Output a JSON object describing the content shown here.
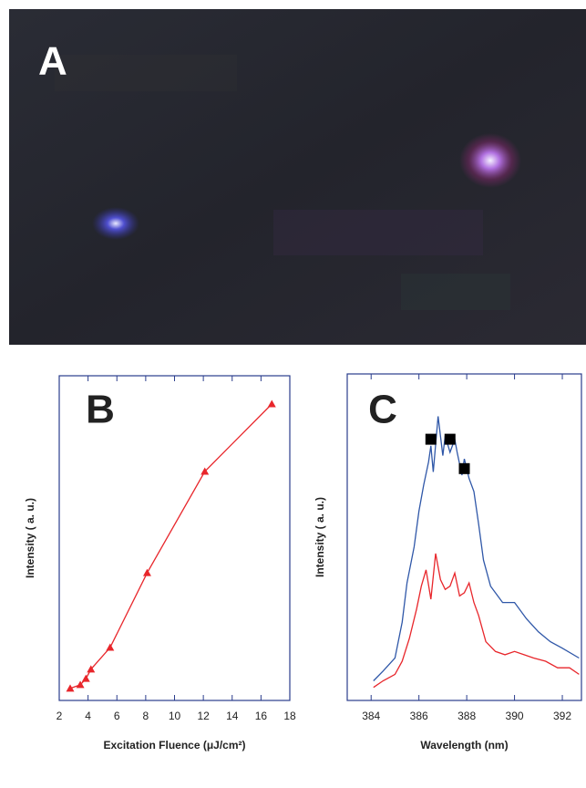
{
  "panel_a": {
    "label": "A"
  },
  "chart_data": [
    {
      "type": "line",
      "label": "B",
      "x_label": "Excitation Fluence  (μJ/cm²)",
      "y_label": "Intensity ( a. u.)",
      "series": [
        {
          "color": "#e8262b",
          "marker": "triangle",
          "x": [
            2.76,
            3.46,
            3.85,
            4.2,
            5.53,
            8.1,
            12.1,
            16.75
          ],
          "values": [
            0.37,
            0.48,
            0.67,
            0.96,
            1.63,
            3.93,
            7.05,
            9.13
          ]
        }
      ],
      "xlim": [
        2,
        18
      ],
      "xticks": [
        2,
        4,
        6,
        8,
        10,
        12,
        14,
        16,
        18
      ],
      "ylim": [
        0,
        10
      ]
    },
    {
      "type": "line",
      "label": "C",
      "x_label": "Wavelength (nm)",
      "y_label": "Intensity ( a. u.)",
      "series": [
        {
          "color": "#2f57a8",
          "x": [
            384.1,
            384.5,
            385,
            385.3,
            385.5,
            385.8,
            386,
            386.2,
            386.4,
            386.5,
            386.6,
            386.8,
            387,
            387.1,
            387.3,
            387.5,
            387.6,
            387.8,
            387.9,
            388.1,
            388.3,
            388.5,
            388.7,
            389,
            389.5,
            390,
            390.5,
            391,
            391.5,
            392,
            392.7
          ],
          "values": [
            0.6,
            0.9,
            1.3,
            2.4,
            3.6,
            4.7,
            5.8,
            6.6,
            7.3,
            7.8,
            7.0,
            8.7,
            7.5,
            8.1,
            7.6,
            8.0,
            7.6,
            6.9,
            7.4,
            6.8,
            6.4,
            5.4,
            4.3,
            3.5,
            3.0,
            3.0,
            2.5,
            2.1,
            1.8,
            1.6,
            1.3
          ]
        },
        {
          "color": "#e8262b",
          "x": [
            384.1,
            384.5,
            385,
            385.3,
            385.6,
            385.9,
            386.1,
            386.3,
            386.5,
            386.7,
            386.9,
            387.1,
            387.3,
            387.5,
            387.7,
            387.9,
            388.1,
            388.3,
            388.5,
            388.8,
            389.2,
            389.6,
            390,
            390.4,
            390.8,
            391.3,
            391.8,
            392.3,
            392.7
          ],
          "values": [
            0.4,
            0.6,
            0.8,
            1.2,
            1.9,
            2.8,
            3.5,
            4.0,
            3.1,
            4.5,
            3.7,
            3.4,
            3.5,
            3.9,
            3.2,
            3.3,
            3.6,
            3.0,
            2.6,
            1.8,
            1.5,
            1.4,
            1.5,
            1.4,
            1.3,
            1.2,
            1.0,
            1.0,
            0.8
          ]
        },
        {
          "color": "#000000",
          "marker": "square",
          "line": false,
          "x": [
            386.5,
            387.3,
            387.9
          ],
          "values": [
            8.0,
            8.0,
            7.1
          ]
        }
      ],
      "xlim": [
        383,
        392.8
      ],
      "xticks": [
        384,
        386,
        388,
        390,
        392
      ],
      "ylim": [
        0,
        10
      ]
    }
  ]
}
